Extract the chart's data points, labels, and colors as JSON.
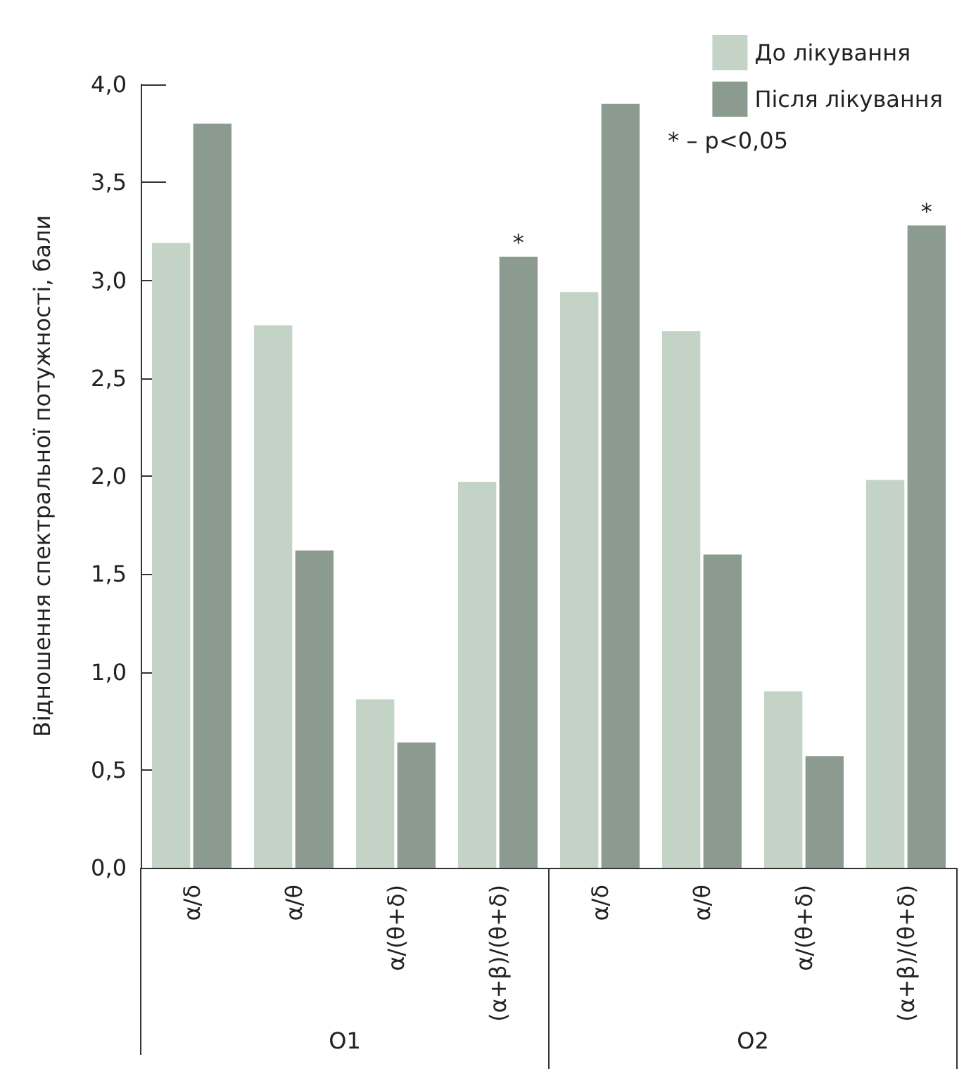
{
  "chart_data": {
    "type": "bar",
    "ylabel": "Відношення спектральної потужності, бали",
    "categories": [
      "α/δ",
      "α/θ",
      "α/(θ+δ)",
      "(α+β)/(θ+δ)",
      "α/δ",
      "α/θ",
      "α/(θ+δ)",
      "(α+β)/(θ+δ)"
    ],
    "series": [
      {
        "name": "До лікування",
        "color": "#c3d3c6",
        "values": [
          3.19,
          2.77,
          0.86,
          1.97,
          2.94,
          2.74,
          0.9,
          1.98
        ]
      },
      {
        "name": "Після лікування",
        "color": "#8c9b90",
        "values": [
          3.8,
          1.62,
          0.64,
          3.12,
          3.9,
          1.6,
          0.57,
          3.28
        ],
        "value_labels": [
          null,
          null,
          null,
          "*",
          null,
          null,
          null,
          "*"
        ]
      }
    ],
    "ylim": [
      0,
      4
    ],
    "yticks": [
      {
        "value": 0,
        "label": "0,0"
      },
      {
        "value": 0.5,
        "label": "0,5"
      },
      {
        "value": 1,
        "label": "1,0"
      },
      {
        "value": 1.5,
        "label": "1,5"
      },
      {
        "value": 2,
        "label": "2,0"
      },
      {
        "value": 2.5,
        "label": "2,5"
      },
      {
        "value": 3,
        "label": "3,0"
      },
      {
        "value": 3.5,
        "label": "3,5"
      },
      {
        "value": 4,
        "label": "4,0"
      }
    ],
    "grid": false,
    "legend": "top right",
    "annotations": [
      "* – p<0,05",
      "O1",
      "O2"
    ]
  }
}
